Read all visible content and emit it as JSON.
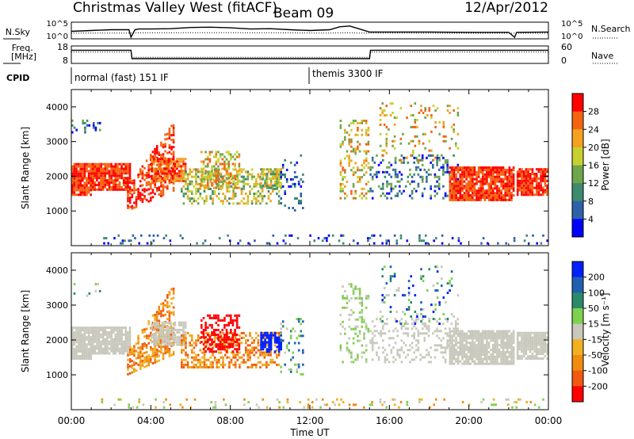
{
  "header": {
    "title": "Christmas Valley West (fitACF)",
    "beam": "Beam 09",
    "date": "12/Apr/2012"
  },
  "colors": {
    "power": [
      "#0000ff",
      "#2d62a8",
      "#3d8a6e",
      "#6fa64a",
      "#c8d030",
      "#f4a020",
      "#f46410",
      "#ff0000"
    ],
    "velocity": [
      "#ff0000",
      "#f25a10",
      "#f08c10",
      "#f0b020",
      "#c8c8bc",
      "#80d050",
      "#2a8a6a",
      "#2060b0",
      "#0020ff"
    ]
  },
  "chart_data": [
    {
      "type": "line",
      "id": "noise",
      "ylabel_left": "N.Sky",
      "ylabel_right": "N.Search",
      "yticks_left": [
        "10^5",
        "10^0"
      ],
      "yticks_right": [
        "10^5",
        "10^0"
      ],
      "x": [
        0,
        1,
        2,
        2.9,
        3,
        3.2,
        3.4,
        4,
        5,
        6,
        7,
        8,
        9,
        10,
        11,
        12,
        13,
        13.5,
        14,
        14.5,
        15,
        16,
        18,
        20,
        22,
        22.3,
        22.4,
        24
      ],
      "nsky": [
        0.45,
        0.5,
        0.55,
        0.55,
        0.05,
        0.55,
        0.6,
        0.6,
        0.62,
        0.7,
        0.72,
        0.68,
        0.6,
        0.62,
        0.55,
        0.5,
        0.55,
        0.75,
        0.8,
        0.6,
        0.4,
        0.4,
        0.4,
        0.38,
        0.38,
        0.05,
        0.38,
        0.4
      ],
      "nsearch": [
        0.32,
        0.33,
        0.33,
        0.33,
        0.33,
        0.33,
        0.34,
        0.35,
        0.35,
        0.36,
        0.36,
        0.36,
        0.35,
        0.35,
        0.34,
        0.33,
        0.33,
        0.34,
        0.34,
        0.33,
        0.33,
        0.33,
        0.32,
        0.32,
        0.32,
        0.32,
        0.32,
        0.32
      ]
    },
    {
      "type": "line",
      "id": "freq",
      "ylabel_left": "Freq.\n[MHz]",
      "ylabel_right": "Nave",
      "yticks_left": [
        "18",
        "8"
      ],
      "yticks_right": [
        "60",
        "0"
      ],
      "x": [
        0,
        3,
        3.05,
        15,
        15.05,
        22.3,
        22.35,
        24
      ],
      "freq_mhz": [
        15.8,
        15.8,
        10.5,
        10.5,
        15.8,
        15.8,
        15.8,
        15.8
      ],
      "nave": [
        40,
        40,
        20,
        20,
        40,
        40,
        40,
        40
      ]
    },
    {
      "type": "table",
      "id": "cpid",
      "label": "CPID",
      "segments": [
        {
          "start": 0,
          "text": "normal (fast) 151 IF"
        },
        {
          "start": 12,
          "text": "themis 3300 IF"
        }
      ]
    },
    {
      "type": "heatmap",
      "id": "power",
      "ylabel": "Slant Range [km]",
      "xlim": [
        0,
        24
      ],
      "ylim": [
        0,
        4500
      ],
      "yticks": [
        1000,
        2000,
        3000,
        4000
      ],
      "colorbar_label": "Power [dB]",
      "colorbar_ticks": [
        "4",
        "8",
        "12",
        "16",
        "20",
        "24",
        "28"
      ]
    },
    {
      "type": "heatmap",
      "id": "velocity",
      "ylabel": "Slant Range [km]",
      "xlabel": "Time UT",
      "xlim": [
        0,
        24
      ],
      "ylim": [
        0,
        4500
      ],
      "yticks": [
        1000,
        2000,
        3000,
        4000
      ],
      "xticks": [
        "00:00",
        "04:00",
        "08:00",
        "12:00",
        "16:00",
        "20:00",
        "00:00"
      ],
      "colorbar_label": "Velocity [m s⁻¹]",
      "colorbar_ticks": [
        "200",
        "100",
        "50",
        "15",
        "-15",
        "-50",
        "-100",
        "-200"
      ]
    }
  ]
}
